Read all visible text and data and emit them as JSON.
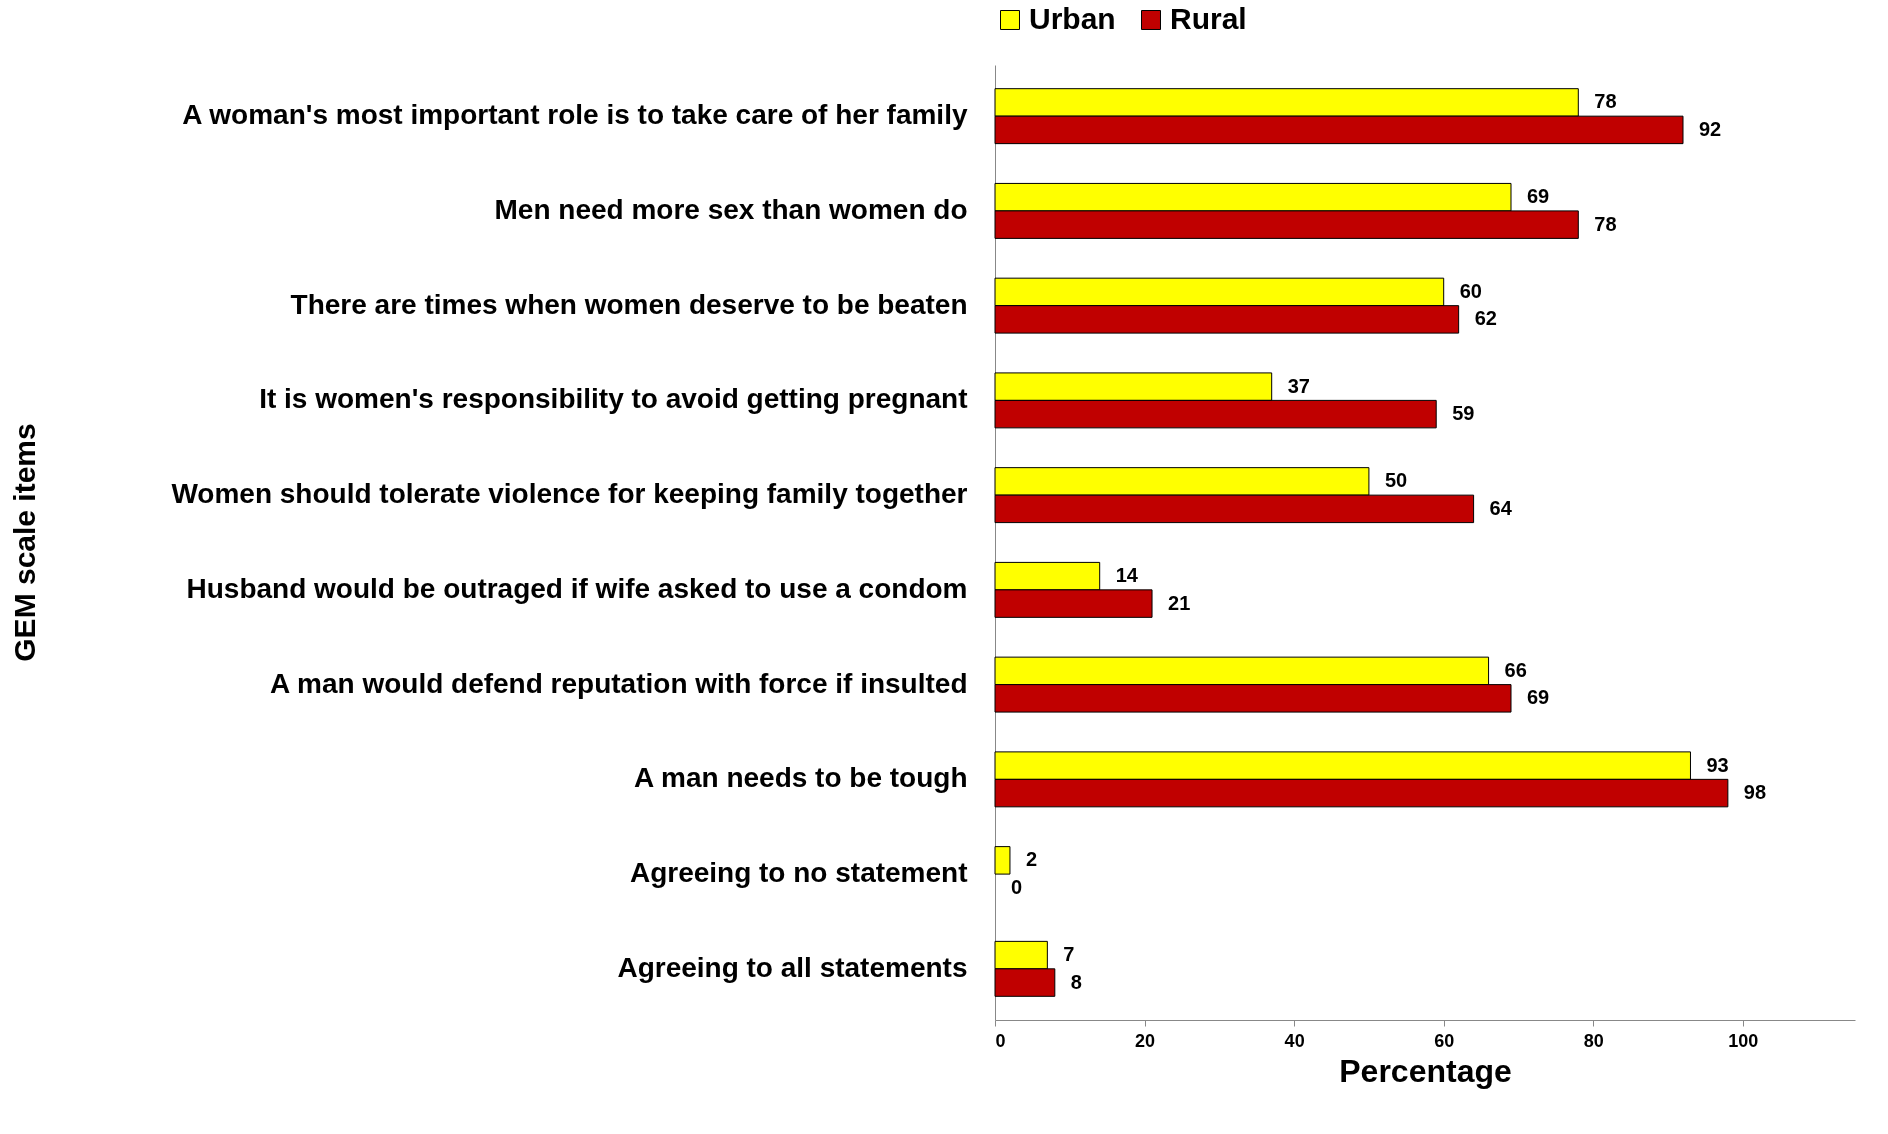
{
  "chart_data": {
    "type": "bar",
    "orientation": "horizontal",
    "ylabel": "GEM scale items",
    "xlabel": "Percentage",
    "categories": [
      "A woman's most important role is to take care of her family",
      "Men need more sex than women do",
      "There are times when women deserve to be beaten",
      "It is women's responsibility to avoid getting pregnant",
      "Women should tolerate violence for keeping family together",
      "Husband would be outraged if wife asked to use a condom",
      "A man would defend reputation with force if insulted",
      "A man needs to be tough",
      "Agreeing to no statement",
      "Agreeing to all statements"
    ],
    "series": [
      {
        "name": "Urban",
        "color": "#ffff00",
        "values": [
          78,
          69,
          60,
          37,
          50,
          14,
          66,
          93,
          2,
          7
        ]
      },
      {
        "name": "Rural",
        "color": "#c00000",
        "values": [
          92,
          78,
          62,
          59,
          64,
          21,
          69,
          98,
          0,
          8
        ]
      }
    ],
    "xlim": [
      0,
      115
    ],
    "xticks": [
      0,
      20,
      40,
      60,
      80,
      100
    ],
    "data_labels": true,
    "legend": "top",
    "grid": false
  }
}
